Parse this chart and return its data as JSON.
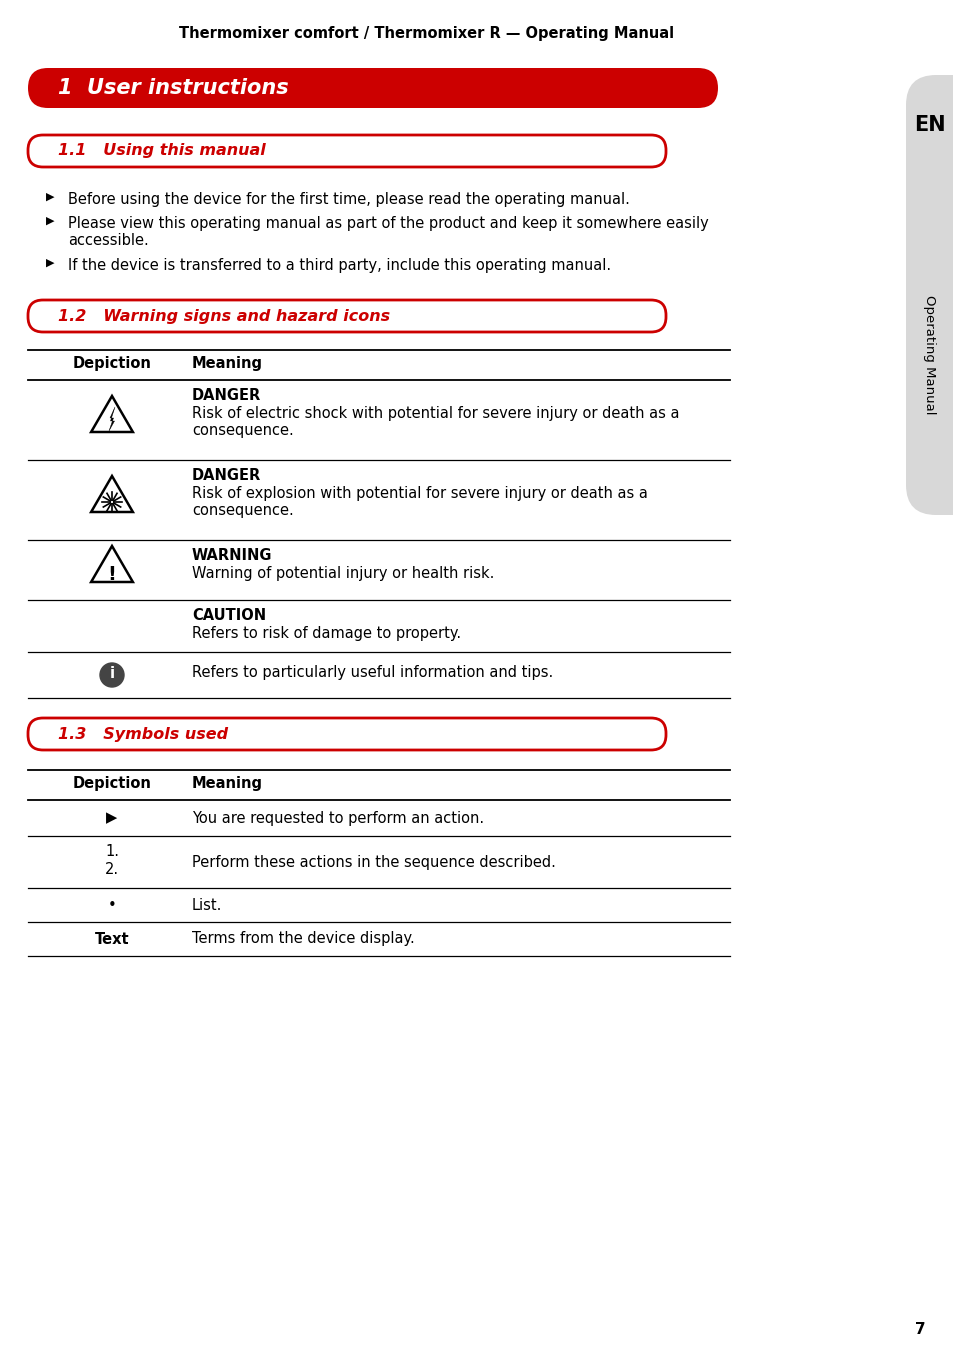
{
  "page_title": "Thermomixer comfort / Thermomixer R — Operating Manual",
  "section1_title": "1  User instructions",
  "section11_title": "1.1   Using this manual",
  "bullet_points": [
    "Before using the device for the first time, please read the operating manual.",
    "Please view this operating manual as part of the product and keep it somewhere easily\naccessible.",
    "If the device is transferred to a third party, include this operating manual."
  ],
  "section12_title": "1.2   Warning signs and hazard icons",
  "section13_title": "1.3   Symbols used",
  "table1_rows": [
    {
      "icon": "lightning",
      "bold": "DANGER",
      "text": "Risk of electric shock with potential for severe injury or death as a\nconsequence."
    },
    {
      "icon": "explosion",
      "bold": "DANGER",
      "text": "Risk of explosion with potential for severe injury or death as a\nconsequence."
    },
    {
      "icon": "warning",
      "bold": "WARNING",
      "text": "Warning of potential injury or health risk."
    },
    {
      "icon": "none",
      "bold": "CAUTION",
      "text": "Refers to risk of damage to property."
    },
    {
      "icon": "info",
      "bold": "",
      "text": "Refers to particularly useful information and tips."
    }
  ],
  "table2_rows": [
    {
      "depiction": "▶",
      "meaning": "You are requested to perform an action.",
      "bold": false
    },
    {
      "depiction": "1.\n2.",
      "meaning": "Perform these actions in the sequence described.",
      "bold": false
    },
    {
      "depiction": "•",
      "meaning": "List.",
      "bold": false
    },
    {
      "depiction": "Text",
      "meaning": "Terms from the device display.",
      "bold": true
    }
  ],
  "sidebar_text": "Operating Manual",
  "sidebar_en": "EN",
  "page_number": "7",
  "bg_color": "#ffffff",
  "red_color": "#cc0000",
  "sidebar_bg": "#d8d8d8"
}
